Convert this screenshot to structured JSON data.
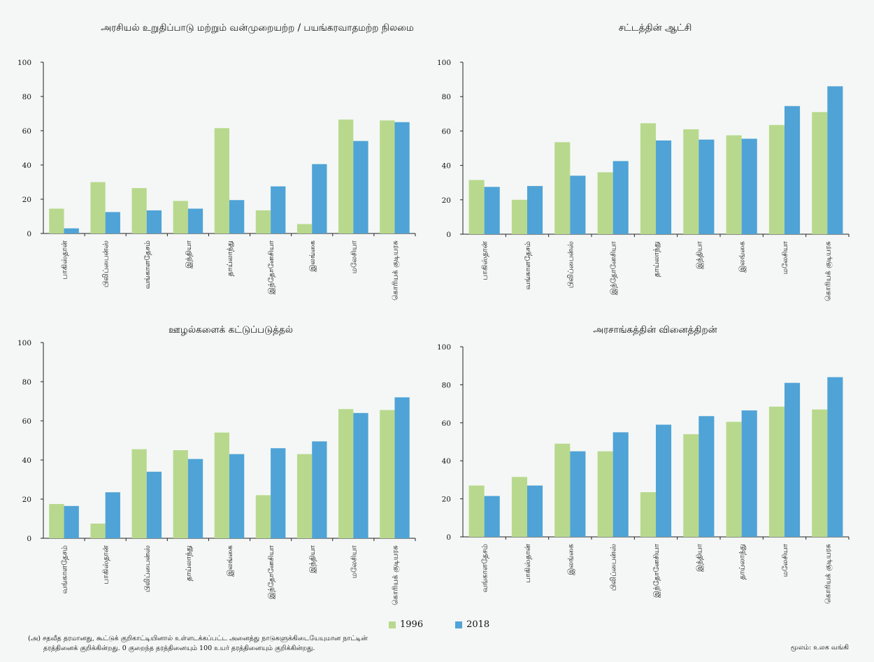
{
  "legend": {
    "label_1996": "1996",
    "label_2018": "2018"
  },
  "colors": {
    "s1996": "#b8d98d",
    "s2018": "#4fa3d6"
  },
  "footnote": {
    "line1": "(அ) சதவீத தரமானது, கூட்டுக் குறிகாட்டியினால் உள்ளடக்கப்பட்ட அனைத்து நாடுகளுக்கிடையேயுமான நாட்டின்",
    "line2": "தரத்தினைக் குறிக்கின்றது. 0 குறைந்த தரத்தினையும் 100 உயர் தரத்தினையும் குறிக்கின்றது."
  },
  "source": "மூலம்: உலக வங்கி",
  "chart_data": [
    {
      "type": "bar",
      "title": "அரசியல் உறுதிப்பாடு மற்றும் வன்முறையற்ற / பயங்கரவாதமற்ற நிலமை",
      "categories": [
        "பாகிஸ்தான்",
        "பிலிப்பைன்ஸ்",
        "வங்காளதேசம்",
        "இந்தியா",
        "தாய்லாந்து",
        "இந்தோனேசியா",
        "இலங்கை",
        "மலேசியா",
        "கொரியக் குடியரசு"
      ],
      "series": [
        {
          "name": "1996",
          "values": [
            14.5,
            30,
            26.5,
            19,
            61.5,
            13.5,
            5.5,
            66.5,
            66
          ]
        },
        {
          "name": "2018",
          "values": [
            3,
            12.5,
            13.5,
            14.5,
            19.5,
            27.5,
            40.5,
            54,
            65
          ]
        }
      ],
      "ylim": [
        0,
        100
      ],
      "yticks": [
        0,
        20,
        40,
        60,
        80,
        100
      ]
    },
    {
      "type": "bar",
      "title": "சட்டத்தின் ஆட்சி",
      "categories": [
        "பாகிஸ்தான்",
        "வங்காளதேசம்",
        "பிலிப்பைன்ஸ்",
        "இந்தோனேசியா",
        "தாய்லாந்து",
        "இந்தியா",
        "இலங்கை",
        "மலேசியா",
        "கொரியக் குடியரசு"
      ],
      "series": [
        {
          "name": "1996",
          "values": [
            31.5,
            20,
            53.5,
            36,
            64.5,
            61,
            57.5,
            63.5,
            71
          ]
        },
        {
          "name": "2018",
          "values": [
            27.5,
            28,
            34,
            42.5,
            54.5,
            55,
            55.5,
            74.5,
            86
          ]
        }
      ],
      "ylim": [
        0,
        100
      ],
      "yticks": [
        0,
        20,
        40,
        60,
        80,
        100
      ]
    },
    {
      "type": "bar",
      "title": "ஊழல்களைக் கட்டுப்படுத்தல்",
      "categories": [
        "வங்காளதேசம்",
        "பாகிஸ்தான்",
        "பிலிப்பைன்ஸ்",
        "தாய்லாந்து",
        "இலங்கை",
        "இந்தோனேசியா",
        "இந்தியா",
        "மலேசியா",
        "கொரியக் குடியரசு"
      ],
      "series": [
        {
          "name": "1996",
          "values": [
            17.5,
            7.5,
            45.5,
            45,
            54,
            22,
            43,
            66,
            65.5
          ]
        },
        {
          "name": "2018",
          "values": [
            16.5,
            23.5,
            34,
            40.5,
            43,
            46,
            49.5,
            64,
            72
          ]
        }
      ],
      "ylim": [
        0,
        100
      ],
      "yticks": [
        0,
        20,
        40,
        60,
        80,
        100
      ]
    },
    {
      "type": "bar",
      "title": "அரசாங்கத்தின் வினைத்திறன்",
      "categories": [
        "வங்காளதேசம்",
        "பாகிஸ்தான்",
        "இலங்கை",
        "பிலிப்பைன்ஸ்",
        "இந்தோனேசியா",
        "இந்தியா",
        "தாய்லாந்து",
        "மலேசியா",
        "கொரியக் குடியரசு"
      ],
      "series": [
        {
          "name": "1996",
          "values": [
            27,
            31.5,
            49,
            45,
            23.5,
            54,
            60.5,
            68.5,
            67
          ]
        },
        {
          "name": "2018",
          "values": [
            21.5,
            27,
            45,
            55,
            59,
            63.5,
            66.5,
            81,
            84
          ]
        }
      ],
      "ylim": [
        0,
        100
      ],
      "yticks": [
        0,
        20,
        40,
        60,
        80,
        100
      ]
    }
  ]
}
